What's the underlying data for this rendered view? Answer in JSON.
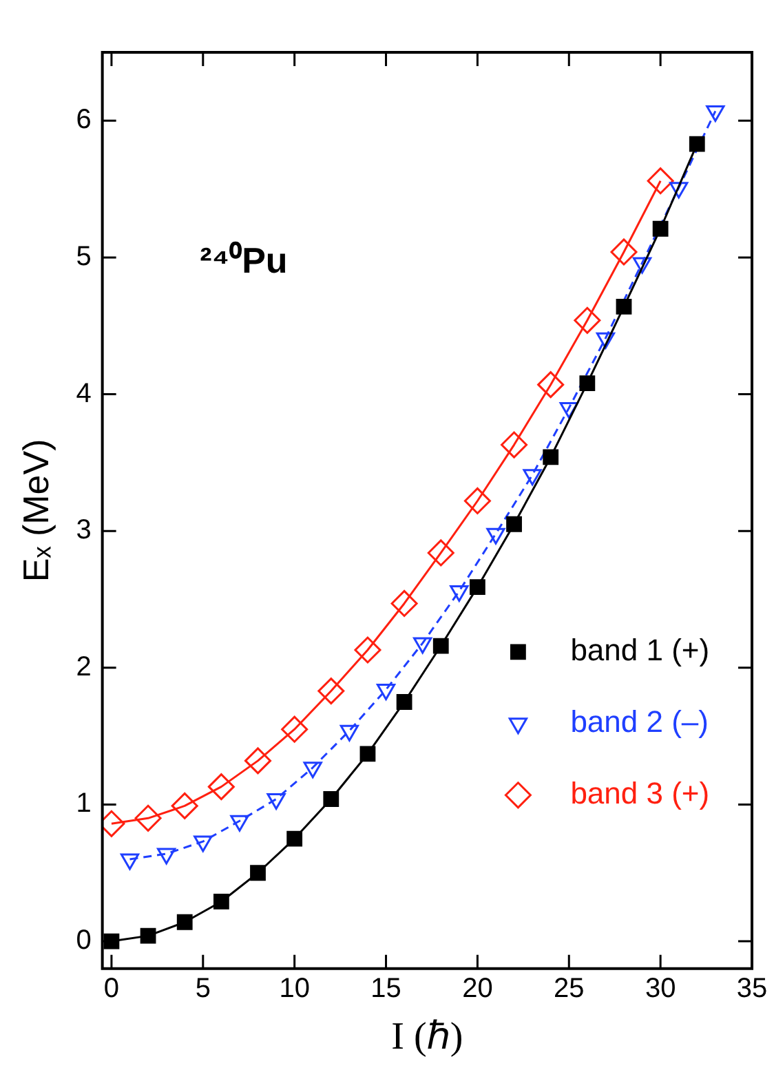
{
  "chart_data": {
    "type": "line",
    "xlabel": "I (ℏ)",
    "ylabel": "Eₓ (MeV)",
    "annotations": [
      "²⁴⁰Pu"
    ],
    "xlim": [
      -0.5,
      35
    ],
    "xticks": [
      0,
      5,
      10,
      15,
      20,
      25,
      30,
      35
    ],
    "ylim": [
      -0.2,
      6.5
    ],
    "yticks": [
      0,
      1,
      2,
      3,
      4,
      5,
      6
    ],
    "grid": false,
    "legend": "bottom right",
    "series": [
      {
        "name": "band 1 (+)",
        "color": "#000000",
        "marker": "square",
        "line_style": "solid",
        "x": [
          0,
          2,
          4,
          6,
          8,
          10,
          12,
          14,
          16,
          18,
          20,
          22,
          24,
          26,
          28,
          30,
          32
        ],
        "values": [
          0,
          0.04,
          0.14,
          0.29,
          0.5,
          0.75,
          1.04,
          1.37,
          1.75,
          2.16,
          2.59,
          3.05,
          3.54,
          4.08,
          4.64,
          5.21,
          5.83
        ]
      },
      {
        "name": "band 2 (–)",
        "color": "#1f3fff",
        "marker": "triangle",
        "line_style": "dashed",
        "x": [
          1,
          3,
          5,
          7,
          9,
          11,
          13,
          15,
          17,
          19,
          21,
          23,
          25,
          27,
          29,
          31,
          33
        ],
        "values": [
          0.6,
          0.64,
          0.73,
          0.88,
          1.04,
          1.27,
          1.54,
          1.84,
          2.18,
          2.56,
          2.98,
          3.41,
          3.9,
          4.41,
          4.96,
          5.51,
          6.07
        ]
      },
      {
        "name": "band 3 (+)",
        "color": "#ff2010",
        "marker": "diamond",
        "line_style": "solid",
        "x": [
          0,
          2,
          4,
          6,
          8,
          10,
          12,
          14,
          16,
          18,
          20,
          22,
          24,
          26,
          28,
          30
        ],
        "values": [
          0.86,
          0.9,
          0.99,
          1.13,
          1.32,
          1.55,
          1.83,
          2.13,
          2.47,
          2.84,
          3.22,
          3.63,
          4.07,
          4.54,
          5.04,
          5.56
        ]
      }
    ]
  }
}
